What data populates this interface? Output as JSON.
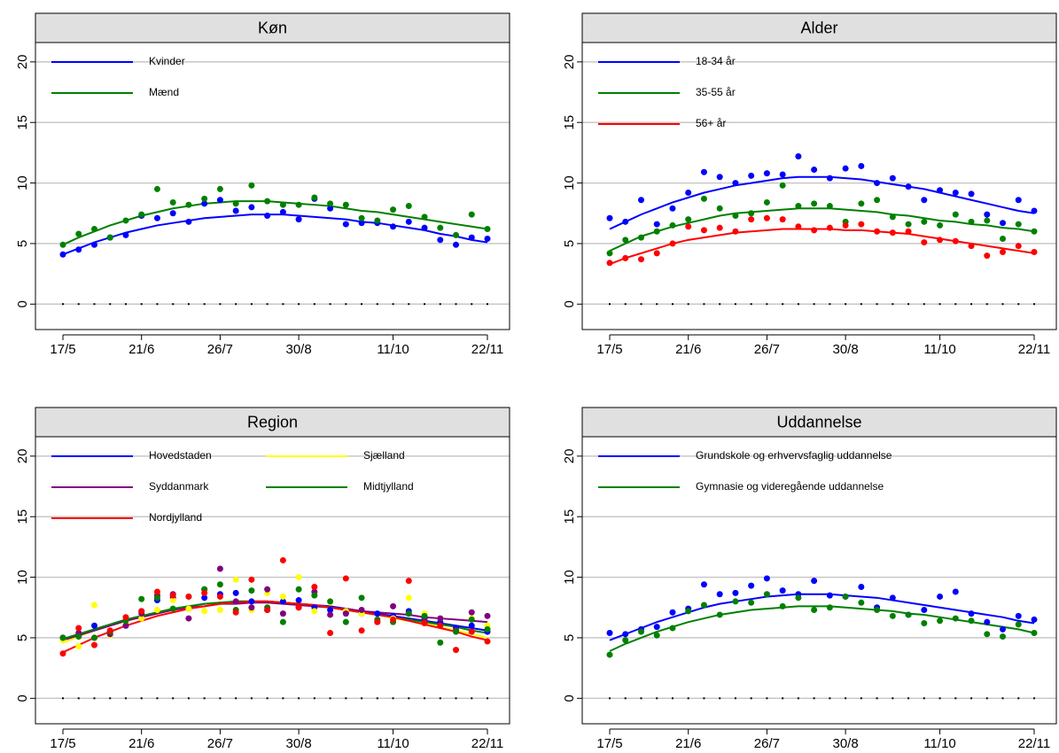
{
  "chart_data": [
    {
      "type": "scatter",
      "title": "Køn",
      "legend_columns": 1,
      "categories": [
        "17/5",
        null,
        null,
        null,
        null,
        "21/6",
        null,
        null,
        null,
        null,
        "26/7",
        null,
        null,
        null,
        null,
        "30/8",
        null,
        null,
        null,
        null,
        null,
        "11/10",
        null,
        null,
        null,
        null,
        null,
        "22/11"
      ],
      "ylim": [
        -2.1,
        21.6
      ],
      "yticks": [
        0,
        5,
        10,
        15,
        20
      ],
      "grid": true,
      "series": [
        {
          "name": "Kvinder",
          "color": "#0000ff",
          "values": [
            4.1,
            4.5,
            4.9,
            5.5,
            5.7,
            7.3,
            7.1,
            7.5,
            6.8,
            8.3,
            8.6,
            7.7,
            8.0,
            7.3,
            7.6,
            7.0,
            8.7,
            7.9,
            6.6,
            6.7,
            6.7,
            6.4,
            6.8,
            6.3,
            5.3,
            4.9,
            5.5,
            5.4
          ],
          "trend": [
            4.1,
            4.6,
            5.1,
            5.5,
            5.9,
            6.2,
            6.5,
            6.7,
            6.9,
            7.1,
            7.2,
            7.3,
            7.4,
            7.4,
            7.4,
            7.3,
            7.2,
            7.1,
            7.0,
            6.8,
            6.7,
            6.5,
            6.3,
            6.1,
            5.8,
            5.6,
            5.3,
            5.1
          ]
        },
        {
          "name": "Mænd",
          "color": "#008000",
          "values": [
            4.9,
            5.8,
            6.2,
            5.5,
            6.9,
            7.4,
            9.5,
            8.4,
            8.2,
            8.7,
            9.5,
            8.3,
            9.8,
            8.5,
            8.2,
            8.2,
            8.8,
            8.3,
            8.2,
            7.1,
            6.9,
            7.8,
            8.1,
            7.2,
            6.3,
            5.7,
            7.4,
            6.2
          ],
          "trend": [
            4.9,
            5.5,
            6.0,
            6.5,
            6.9,
            7.3,
            7.6,
            7.9,
            8.1,
            8.3,
            8.4,
            8.5,
            8.5,
            8.5,
            8.4,
            8.3,
            8.2,
            8.1,
            7.9,
            7.7,
            7.6,
            7.4,
            7.2,
            7.0,
            6.8,
            6.6,
            6.4,
            6.2
          ]
        }
      ]
    },
    {
      "type": "scatter",
      "title": "Alder",
      "legend_columns": 1,
      "categories": [
        "17/5",
        null,
        null,
        null,
        null,
        "21/6",
        null,
        null,
        null,
        null,
        "26/7",
        null,
        null,
        null,
        null,
        "30/8",
        null,
        null,
        null,
        null,
        null,
        "11/10",
        null,
        null,
        null,
        null,
        null,
        "22/11"
      ],
      "ylim": [
        -2.1,
        21.6
      ],
      "yticks": [
        0,
        5,
        10,
        15,
        20
      ],
      "grid": true,
      "series": [
        {
          "name": "18-34 år",
          "color": "#0000ff",
          "values": [
            7.1,
            6.8,
            8.6,
            6.6,
            7.9,
            9.2,
            10.9,
            10.5,
            10.0,
            10.6,
            10.8,
            10.7,
            12.2,
            11.1,
            10.4,
            11.2,
            11.4,
            10.0,
            10.4,
            9.7,
            8.6,
            9.4,
            9.2,
            9.1,
            7.4,
            6.7,
            8.6,
            7.7
          ],
          "trend": [
            6.2,
            6.8,
            7.4,
            7.9,
            8.4,
            8.8,
            9.2,
            9.5,
            9.8,
            10.0,
            10.2,
            10.4,
            10.5,
            10.5,
            10.5,
            10.4,
            10.3,
            10.1,
            9.9,
            9.7,
            9.5,
            9.2,
            8.9,
            8.6,
            8.3,
            8.0,
            7.7,
            7.5
          ]
        },
        {
          "name": "35-55 år",
          "color": "#008000",
          "values": [
            4.2,
            5.3,
            5.5,
            6.0,
            6.5,
            7.0,
            8.7,
            7.9,
            7.3,
            7.5,
            8.4,
            9.8,
            8.1,
            8.3,
            8.1,
            6.8,
            8.3,
            8.6,
            7.2,
            6.6,
            6.8,
            6.5,
            7.4,
            6.8,
            6.9,
            5.4,
            6.6,
            6.0
          ],
          "trend": [
            4.4,
            5.0,
            5.6,
            6.0,
            6.4,
            6.7,
            7.0,
            7.3,
            7.5,
            7.6,
            7.7,
            7.8,
            7.9,
            7.9,
            7.9,
            7.8,
            7.7,
            7.6,
            7.4,
            7.3,
            7.1,
            6.9,
            6.8,
            6.6,
            6.5,
            6.3,
            6.2,
            6.0
          ]
        },
        {
          "name": "56+ år",
          "color": "#ff0000",
          "values": [
            3.4,
            3.8,
            3.7,
            4.2,
            5.0,
            6.4,
            6.1,
            6.3,
            6.0,
            7.0,
            7.1,
            7.0,
            6.4,
            6.1,
            6.3,
            6.5,
            6.6,
            6.0,
            5.9,
            6.0,
            5.1,
            5.3,
            5.2,
            4.8,
            4.0,
            4.3,
            4.8,
            4.3
          ],
          "trend": [
            3.3,
            3.8,
            4.2,
            4.6,
            5.0,
            5.3,
            5.5,
            5.7,
            5.9,
            6.0,
            6.1,
            6.2,
            6.2,
            6.2,
            6.2,
            6.1,
            6.1,
            6.0,
            5.9,
            5.8,
            5.6,
            5.4,
            5.2,
            5.0,
            4.8,
            4.6,
            4.4,
            4.2
          ]
        }
      ]
    },
    {
      "type": "scatter",
      "title": "Region",
      "legend_columns": 2,
      "categories": [
        "17/5",
        null,
        null,
        null,
        null,
        "21/6",
        null,
        null,
        null,
        null,
        "26/7",
        null,
        null,
        null,
        null,
        "30/8",
        null,
        null,
        null,
        null,
        null,
        "11/10",
        null,
        null,
        null,
        null,
        null,
        "22/11"
      ],
      "ylim": [
        -2.1,
        21.6
      ],
      "yticks": [
        0,
        5,
        10,
        15,
        20
      ],
      "grid": true,
      "series": [
        {
          "name": "Hovedstaden",
          "color": "#0000ff",
          "values": [
            5.0,
            5.2,
            6.0,
            5.5,
            6.0,
            7.2,
            8.1,
            8.3,
            7.4,
            8.3,
            8.6,
            8.7,
            8.0,
            7.3,
            8.0,
            8.1,
            7.5,
            7.3,
            7.1,
            7.0,
            7.0,
            6.8,
            7.2,
            6.6,
            6.3,
            5.8,
            6.0,
            5.5
          ],
          "trend": [
            4.9,
            5.3,
            5.7,
            6.1,
            6.5,
            6.8,
            7.1,
            7.4,
            7.6,
            7.8,
            7.9,
            8.0,
            8.0,
            8.0,
            7.9,
            7.8,
            7.7,
            7.6,
            7.4,
            7.2,
            7.0,
            6.8,
            6.6,
            6.4,
            6.2,
            6.0,
            5.8,
            5.6
          ]
        },
        {
          "name": "Sjælland",
          "color": "#ffff00",
          "values": [
            4.8,
            4.3,
            7.7,
            5.2,
            6.2,
            6.6,
            7.3,
            8.1,
            7.4,
            7.2,
            7.3,
            9.8,
            7.3,
            8.7,
            8.4,
            10.0,
            7.2,
            7.9,
            7.2,
            7.0,
            6.5,
            6.6,
            8.3,
            7.0,
            6.6,
            5.6,
            6.6,
            6.0
          ],
          "trend": [
            4.6,
            5.1,
            5.6,
            6.0,
            6.4,
            6.8,
            7.1,
            7.4,
            7.6,
            7.8,
            7.9,
            8.0,
            8.0,
            8.0,
            7.9,
            7.8,
            7.7,
            7.5,
            7.3,
            7.1,
            6.9,
            6.6,
            6.4,
            6.2,
            5.9,
            5.6,
            5.3,
            5.0
          ]
        },
        {
          "name": "Syddanmark",
          "color": "#800080",
          "values": [
            5.0,
            5.4,
            5.0,
            5.3,
            6.0,
            7.0,
            8.5,
            8.6,
            6.6,
            9.0,
            10.7,
            8.0,
            7.5,
            9.0,
            7.0,
            7.5,
            8.8,
            6.9,
            7.0,
            7.3,
            6.3,
            7.6,
            7.0,
            6.5,
            6.6,
            5.6,
            7.1,
            6.8
          ],
          "trend": [
            4.8,
            5.2,
            5.6,
            6.0,
            6.4,
            6.7,
            7.0,
            7.3,
            7.5,
            7.6,
            7.8,
            7.8,
            7.9,
            7.9,
            7.8,
            7.7,
            7.6,
            7.5,
            7.4,
            7.2,
            7.1,
            7.0,
            6.9,
            6.7,
            6.6,
            6.5,
            6.4,
            6.3
          ]
        },
        {
          "name": "Midtjylland",
          "color": "#008000",
          "values": [
            5.0,
            5.1,
            5.0,
            5.5,
            6.4,
            8.2,
            8.3,
            7.4,
            8.4,
            9.0,
            9.4,
            7.3,
            8.9,
            7.5,
            6.3,
            9.0,
            8.5,
            8.0,
            6.3,
            8.3,
            6.5,
            6.3,
            7.0,
            6.8,
            4.6,
            5.5,
            6.5,
            5.7
          ],
          "trend": [
            4.9,
            5.3,
            5.7,
            6.1,
            6.5,
            6.8,
            7.1,
            7.4,
            7.6,
            7.8,
            7.9,
            8.0,
            8.0,
            8.0,
            7.9,
            7.8,
            7.7,
            7.5,
            7.3,
            7.1,
            6.9,
            6.7,
            6.5,
            6.3,
            6.1,
            5.9,
            5.6,
            5.4
          ]
        },
        {
          "name": "Nordjylland",
          "color": "#ff0000",
          "values": [
            3.7,
            5.8,
            4.4,
            5.6,
            6.7,
            7.2,
            8.8,
            8.5,
            8.4,
            8.7,
            8.4,
            7.1,
            9.8,
            7.3,
            11.4,
            7.5,
            9.2,
            5.4,
            9.9,
            5.6,
            6.3,
            6.5,
            9.7,
            6.2,
            6.0,
            4.0,
            5.5,
            4.7
          ],
          "trend": [
            3.8,
            4.4,
            5.0,
            5.5,
            6.0,
            6.4,
            6.8,
            7.1,
            7.4,
            7.6,
            7.8,
            7.9,
            8.0,
            8.0,
            7.9,
            7.8,
            7.7,
            7.5,
            7.3,
            7.1,
            6.9,
            6.7,
            6.4,
            6.1,
            5.8,
            5.5,
            5.1,
            4.8
          ]
        }
      ]
    },
    {
      "type": "scatter",
      "title": "Uddannelse",
      "legend_columns": 1,
      "categories": [
        "17/5",
        null,
        null,
        null,
        null,
        "21/6",
        null,
        null,
        null,
        null,
        "26/7",
        null,
        null,
        null,
        null,
        "30/8",
        null,
        null,
        null,
        null,
        null,
        "11/10",
        null,
        null,
        null,
        null,
        null,
        "22/11"
      ],
      "ylim": [
        -2.1,
        21.6
      ],
      "yticks": [
        0,
        5,
        10,
        15,
        20
      ],
      "grid": true,
      "series": [
        {
          "name": "Grundskole og erhvervsfaglig uddannelse",
          "color": "#0000ff",
          "values": [
            5.4,
            5.3,
            5.7,
            5.9,
            7.1,
            7.4,
            9.4,
            8.6,
            8.7,
            9.3,
            9.9,
            8.9,
            8.6,
            9.7,
            8.5,
            8.4,
            9.2,
            7.5,
            8.3,
            6.9,
            7.3,
            8.4,
            8.8,
            7.0,
            6.3,
            5.7,
            6.8,
            6.5
          ],
          "trend": [
            4.8,
            5.3,
            5.8,
            6.3,
            6.7,
            7.1,
            7.5,
            7.8,
            8.0,
            8.2,
            8.4,
            8.5,
            8.6,
            8.6,
            8.6,
            8.5,
            8.4,
            8.3,
            8.1,
            7.9,
            7.7,
            7.5,
            7.3,
            7.1,
            6.9,
            6.7,
            6.4,
            6.2
          ]
        },
        {
          "name": "Gymnasie og videregående uddannelse",
          "color": "#008000",
          "values": [
            3.6,
            4.8,
            5.5,
            5.2,
            5.8,
            7.2,
            7.7,
            6.9,
            8.0,
            7.9,
            8.6,
            7.6,
            8.3,
            7.3,
            7.5,
            8.4,
            7.9,
            7.3,
            6.8,
            6.9,
            6.2,
            6.4,
            6.6,
            6.4,
            5.3,
            5.1,
            6.1,
            5.4
          ],
          "trend": [
            3.9,
            4.5,
            5.0,
            5.5,
            5.9,
            6.3,
            6.6,
            6.9,
            7.1,
            7.3,
            7.4,
            7.5,
            7.6,
            7.6,
            7.6,
            7.5,
            7.4,
            7.3,
            7.2,
            7.0,
            6.9,
            6.7,
            6.5,
            6.3,
            6.1,
            5.9,
            5.7,
            5.4
          ]
        }
      ]
    }
  ]
}
